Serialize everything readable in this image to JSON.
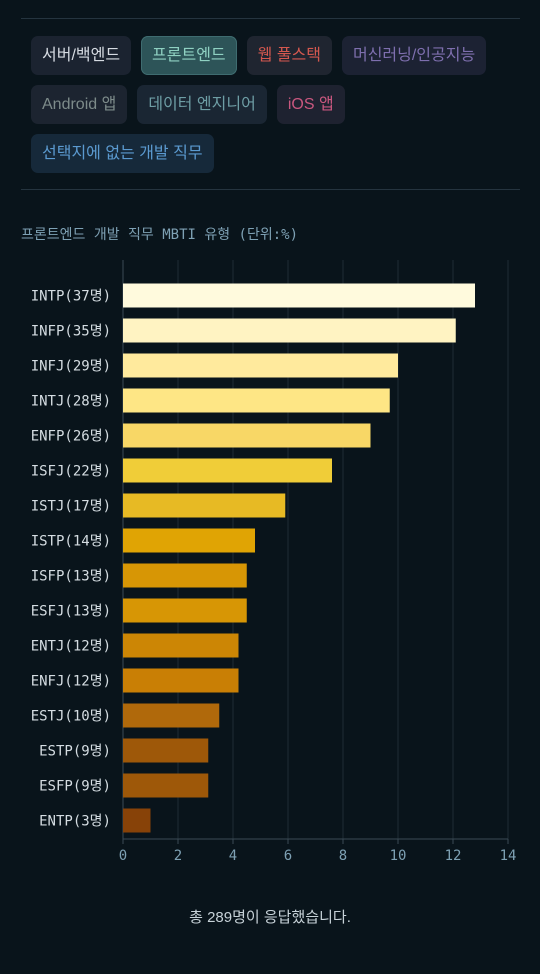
{
  "filters": [
    {
      "label": "서버/백엔드",
      "bg": "#1b2330",
      "color": "#d6dbe2",
      "selected": false
    },
    {
      "label": "프론트엔드",
      "bg": "#2d5458",
      "color": "#8fd1c2",
      "selected": true
    },
    {
      "label": "웹 풀스택",
      "bg": "#1f2530",
      "color": "#d4584f",
      "selected": false
    },
    {
      "label": "머신러닝/인공지능",
      "bg": "#1c2233",
      "color": "#7e6fae",
      "selected": false
    },
    {
      "label": "Android 앱",
      "bg": "#1c2430",
      "color": "#7d8b8a",
      "selected": false
    },
    {
      "label": "데이터 엔지니어",
      "bg": "#1a2633",
      "color": "#6e9ea5",
      "selected": false
    },
    {
      "label": "iOS 앱",
      "bg": "#1e2230",
      "color": "#c9577f",
      "selected": false
    },
    {
      "label": "선택지에 없는 개발 직무",
      "bg": "#16293a",
      "color": "#5b9ad0",
      "selected": false
    }
  ],
  "chart_data": {
    "type": "bar",
    "orientation": "horizontal",
    "title": "프론트엔드 개발 직무 MBTI 유형 (단위:%)",
    "categories": [
      "INTP(37명)",
      "INFP(35명)",
      "INFJ(29명)",
      "INTJ(28명)",
      "ENFP(26명)",
      "ISFJ(22명)",
      "ISTJ(17명)",
      "ISTP(14명)",
      "ISFP(13명)",
      "ESFJ(13명)",
      "ENTJ(12명)",
      "ENFJ(12명)",
      "ESTJ(10명)",
      "ESTP(9명)",
      "ESFP(9명)",
      "ENTP(3명)"
    ],
    "values": [
      12.8,
      12.1,
      10.0,
      9.7,
      9.0,
      7.6,
      5.9,
      4.8,
      4.5,
      4.5,
      4.2,
      4.2,
      3.5,
      3.1,
      3.1,
      1.0
    ],
    "colors": [
      "#fffadd",
      "#fff3c2",
      "#ffea9d",
      "#fee685",
      "#f8d766",
      "#f0cd38",
      "#e7ba24",
      "#e0a404",
      "#d79605",
      "#d79605",
      "#cc8605",
      "#c97f05",
      "#b0690b",
      "#9e5809",
      "#9e5809",
      "#874208"
    ],
    "xlim": [
      0,
      14
    ],
    "xticks": [
      0,
      2,
      4,
      6,
      8,
      10,
      12,
      14
    ],
    "grid": true
  },
  "footer": "총 289명이 응답했습니다."
}
